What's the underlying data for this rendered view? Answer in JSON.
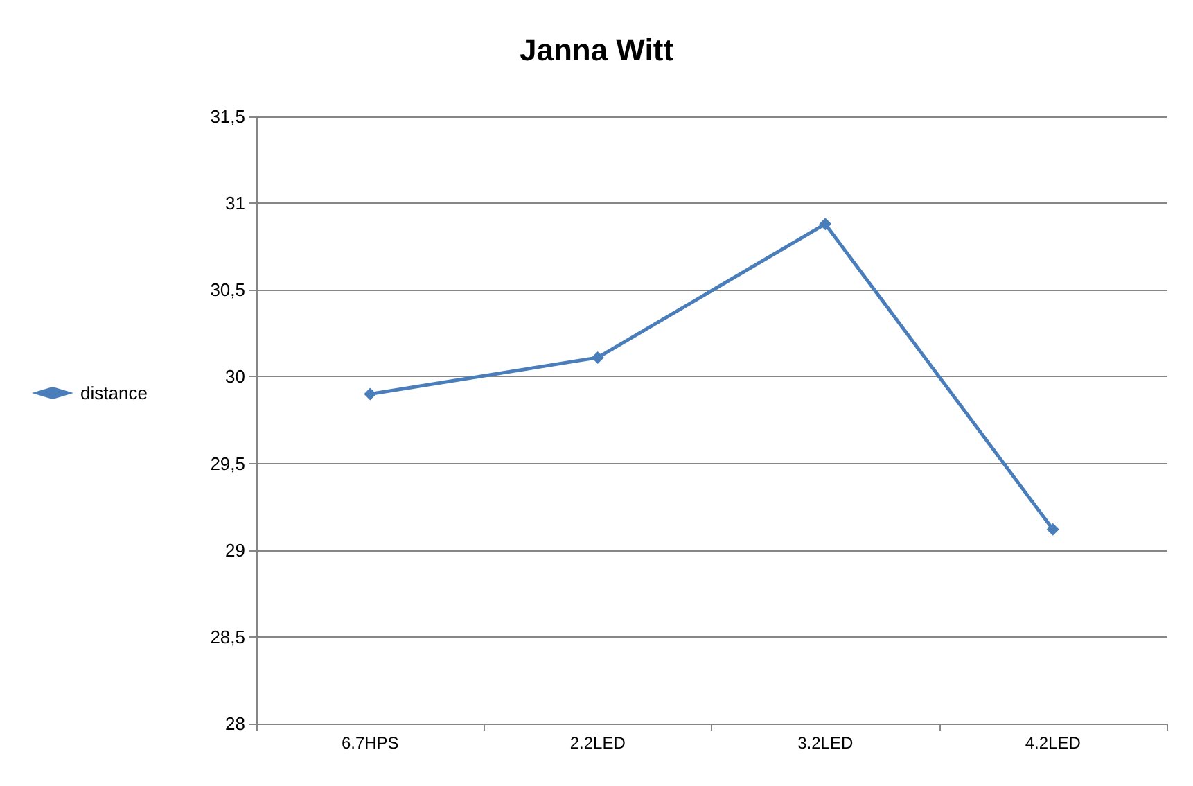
{
  "chart_data": {
    "type": "line",
    "title": "Janna Witt",
    "categories": [
      "6.7HPS",
      "2.2LED",
      "3.2LED",
      "4.2LED"
    ],
    "series": [
      {
        "name": "distance",
        "color": "#4a7ebb",
        "values": [
          29.9,
          30.11,
          30.88,
          29.12
        ]
      }
    ],
    "ylim": [
      28,
      31.5
    ],
    "yticks": [
      28,
      {
        "value": 28.5,
        "label": "28,5"
      },
      29,
      {
        "value": 29.5,
        "label": "29,5"
      },
      30,
      {
        "value": 30.5,
        "label": "30,5"
      },
      31,
      {
        "value": 31.5,
        "label": "31,5"
      }
    ],
    "grid": "y",
    "legend": "left",
    "marker": "diamond",
    "line_style": "solid"
  }
}
